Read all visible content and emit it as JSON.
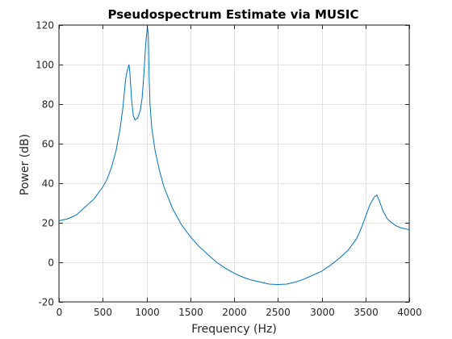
{
  "chart_data": {
    "type": "line",
    "title": "Pseudospectrum Estimate via MUSIC",
    "xlabel": "Frequency (Hz)",
    "ylabel": "Power (dB)",
    "xlim": [
      0,
      4000
    ],
    "ylim": [
      -20,
      120
    ],
    "xticks": [
      0,
      500,
      1000,
      1500,
      2000,
      2500,
      3000,
      3500,
      4000
    ],
    "yticks": [
      -20,
      0,
      20,
      40,
      60,
      80,
      100,
      120
    ],
    "grid": true,
    "line_color": "#0072BD",
    "series": [
      {
        "x": [
          0,
          100,
          200,
          300,
          400,
          500,
          550,
          600,
          650,
          700,
          730,
          760,
          780,
          800,
          810,
          830,
          850,
          870,
          900,
          930,
          950,
          970,
          990,
          1010,
          1020,
          1025,
          1030,
          1040,
          1060,
          1100,
          1150,
          1200,
          1300,
          1400,
          1500,
          1600,
          1700,
          1800,
          1900,
          2000,
          2100,
          2200,
          2300,
          2400,
          2500,
          2600,
          2700,
          2800,
          2900,
          3000,
          3100,
          3200,
          3300,
          3400,
          3450,
          3500,
          3550,
          3600,
          3630,
          3660,
          3700,
          3750,
          3800,
          3850,
          3900,
          3950,
          4000
        ],
        "y": [
          21,
          22,
          24,
          28,
          32,
          38,
          42,
          48,
          56,
          68,
          78,
          92,
          97,
          100,
          96,
          82,
          74,
          72,
          73,
          77,
          83,
          95,
          110,
          119,
          116,
          106,
          94,
          80,
          68,
          56,
          46,
          38,
          27,
          19,
          13,
          8,
          4,
          0,
          -3,
          -5.5,
          -7.5,
          -9,
          -10,
          -11,
          -11.2,
          -11,
          -10,
          -8.5,
          -6.5,
          -4.5,
          -1.5,
          2,
          6,
          12,
          17,
          23,
          29,
          33,
          34,
          31,
          26,
          22,
          20,
          18.5,
          17.5,
          17,
          16.5
        ]
      }
    ]
  }
}
